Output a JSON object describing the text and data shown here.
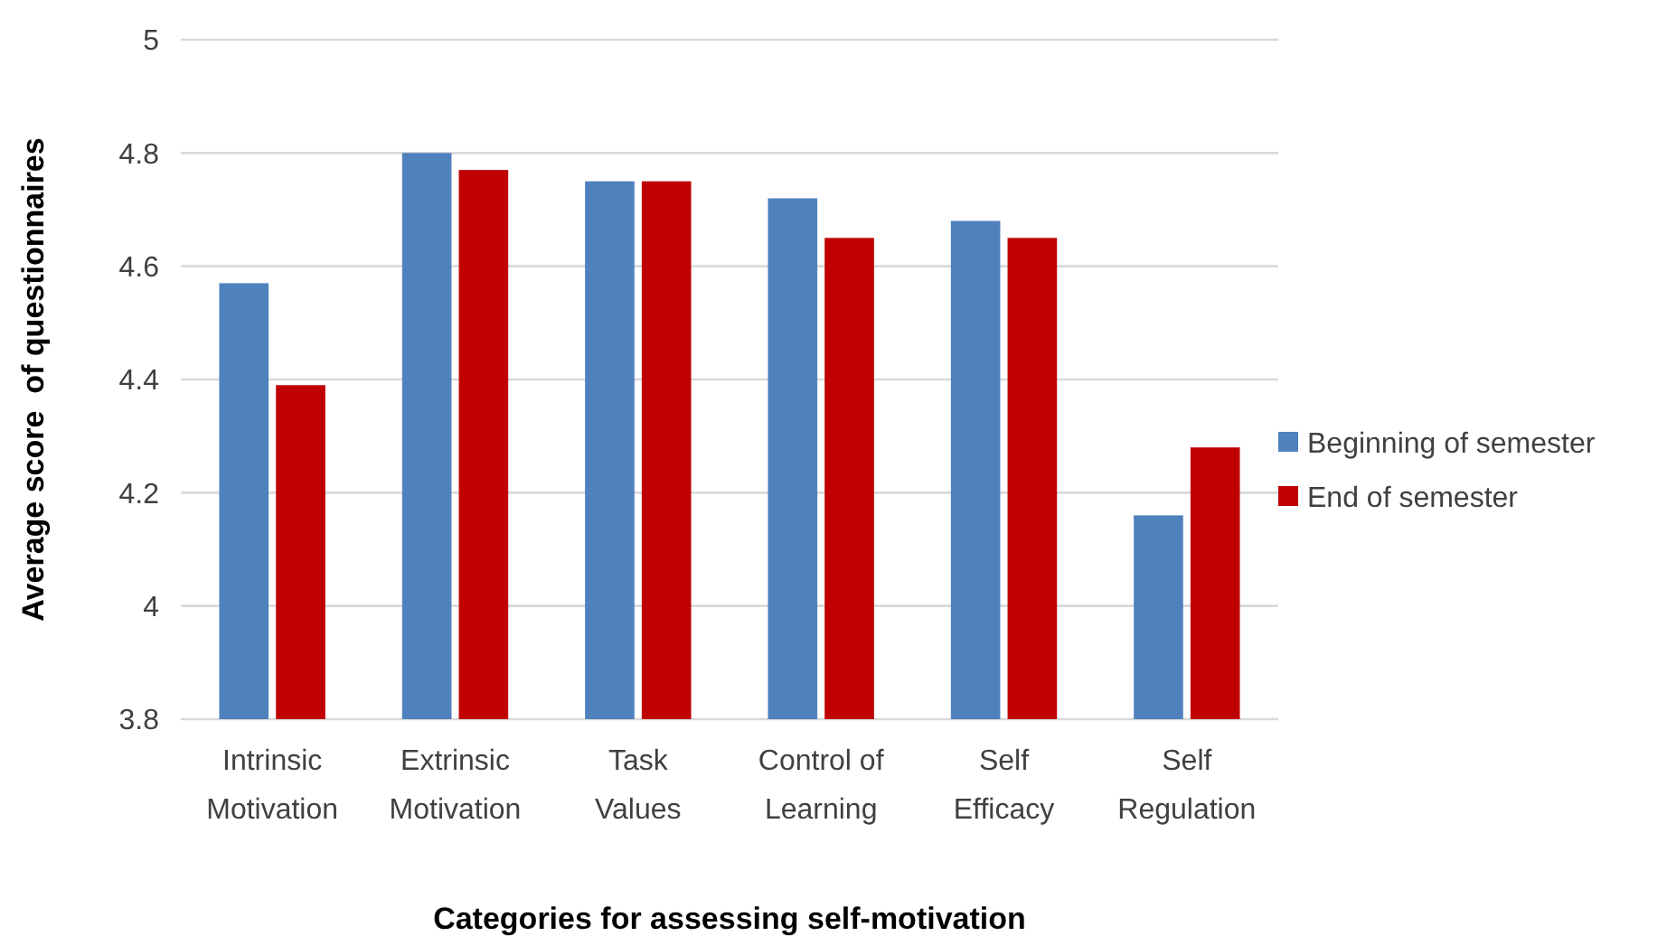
{
  "chart_data": {
    "type": "bar",
    "xlabel": "Categories for assessing self-motivation",
    "ylabel": "Average score  of questionnaires",
    "categories": [
      "Intrinsic Motivation",
      "Extrinsic Motivation",
      "Task Values",
      "Control of Learning",
      "Self Efficacy",
      "Self Regulation"
    ],
    "series": [
      {
        "name": "Beginning of semester",
        "color": "#4f81bd",
        "values": [
          4.57,
          4.8,
          4.75,
          4.72,
          4.68,
          4.16
        ]
      },
      {
        "name": "End of semester",
        "color": "#c00000",
        "values": [
          4.39,
          4.77,
          4.75,
          4.65,
          4.65,
          4.28
        ]
      }
    ],
    "ylim": [
      3.8,
      5
    ],
    "yticks": [
      3.8,
      4,
      4.2,
      4.4,
      4.6,
      4.8,
      5
    ],
    "grid": "y",
    "legend": "right"
  }
}
